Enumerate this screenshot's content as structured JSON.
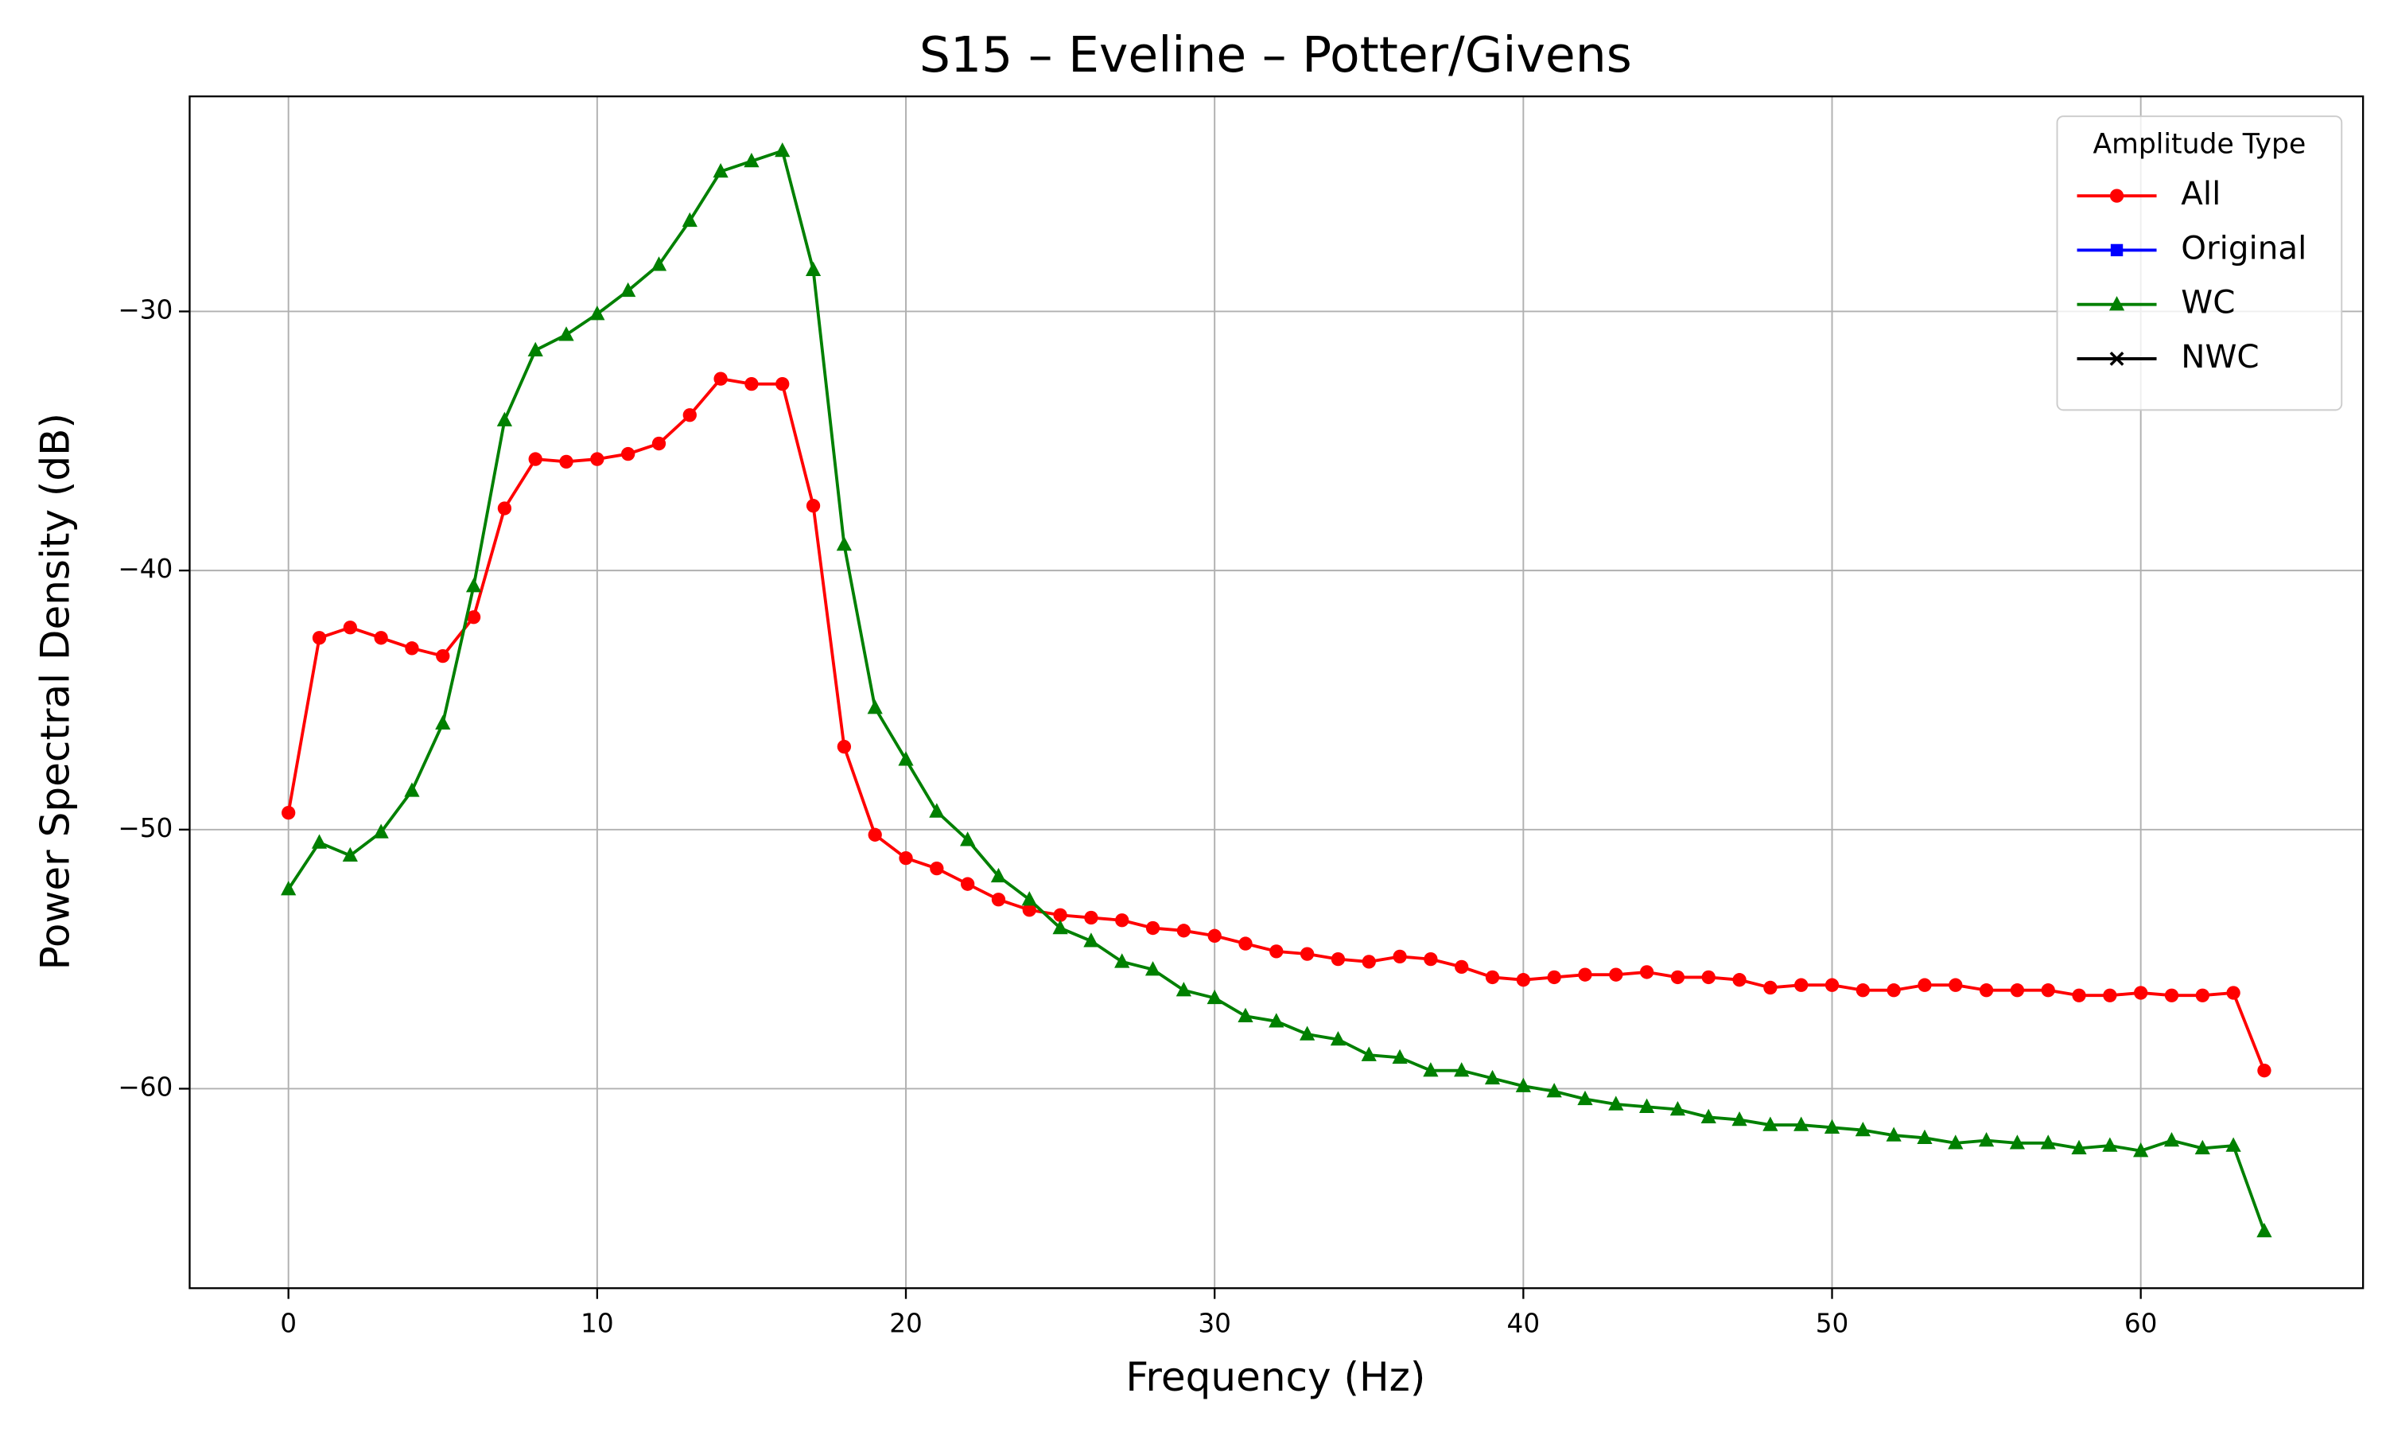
{
  "chart_data": {
    "type": "line",
    "title": "S15 – Eveline – Potter/Givens",
    "x_label": "Frequency (Hz)",
    "y_label": "Power Spectral Density (dB)",
    "x": [
      0,
      1,
      2,
      3,
      4,
      5,
      6,
      7,
      8,
      9,
      10,
      11,
      12,
      13,
      14,
      15,
      16,
      17,
      18,
      19,
      20,
      21,
      22,
      23,
      24,
      25,
      26,
      27,
      28,
      29,
      30,
      31,
      32,
      33,
      34,
      35,
      36,
      37,
      38,
      39,
      40,
      41,
      42,
      43,
      44,
      45,
      46,
      47,
      48,
      49,
      50,
      51,
      52,
      53,
      54,
      55,
      56,
      57,
      58,
      59,
      60,
      61,
      62,
      63,
      64
    ],
    "series": [
      {
        "name": "All",
        "color": "#ff0000",
        "marker": "circle",
        "values": [
          -49.35,
          -42.6,
          -42.2,
          -42.6,
          -43.0,
          -43.3,
          -41.8,
          -37.6,
          -35.7,
          -35.8,
          -35.7,
          -35.5,
          -35.1,
          -34.0,
          -32.6,
          -32.8,
          -32.8,
          -37.5,
          -46.8,
          -50.2,
          -51.1,
          -51.5,
          -52.1,
          -52.7,
          -53.1,
          -53.3,
          -53.4,
          -53.5,
          -53.8,
          -53.9,
          -54.1,
          -54.4,
          -54.7,
          -54.8,
          -55.0,
          -55.1,
          -54.9,
          -55.0,
          -55.3,
          -55.7,
          -55.8,
          -55.7,
          -55.6,
          -55.6,
          -55.5,
          -55.7,
          -55.7,
          -55.8,
          -56.1,
          -56.0,
          -56.0,
          -56.2,
          -56.2,
          -56.0,
          -56.0,
          -56.2,
          -56.2,
          -56.2,
          -56.4,
          -56.4,
          -56.3,
          -56.4,
          -56.4,
          -56.3,
          -59.3
        ]
      },
      {
        "name": "Original",
        "color": "#0000ff",
        "marker": "square"
      },
      {
        "name": "WC",
        "color": "#008000",
        "marker": "triangle",
        "values": [
          -52.3,
          -50.5,
          -51.0,
          -50.1,
          -48.5,
          -45.9,
          -40.6,
          -34.2,
          -31.5,
          -30.9,
          -30.1,
          -29.2,
          -28.2,
          -26.5,
          -24.6,
          -24.2,
          -23.8,
          -28.4,
          -39.0,
          -45.3,
          -47.3,
          -49.3,
          -50.4,
          -51.8,
          -52.7,
          -53.8,
          -54.3,
          -55.1,
          -55.4,
          -56.2,
          -56.5,
          -57.2,
          -57.4,
          -57.9,
          -58.1,
          -58.7,
          -58.8,
          -59.3,
          -59.3,
          -59.6,
          -59.9,
          -60.1,
          -60.4,
          -60.6,
          -60.7,
          -60.8,
          -61.1,
          -61.2,
          -61.4,
          -61.4,
          -61.5,
          -61.6,
          -61.8,
          -61.9,
          -62.1,
          -62.0,
          -62.1,
          -62.1,
          -62.3,
          -62.2,
          -62.4,
          -62.0,
          -62.3,
          -62.2,
          -65.5
        ]
      },
      {
        "name": "NWC",
        "color": "#000000",
        "marker": "x"
      }
    ],
    "xlim": [
      -3.2,
      67.2
    ],
    "ylim": [
      -67.7,
      -21.7
    ],
    "xticks": [
      0,
      10,
      20,
      30,
      40,
      50,
      60
    ],
    "yticks": [
      {
        "value": -60,
        "label": "−60"
      },
      {
        "value": -50,
        "label": "−50"
      },
      {
        "value": -40,
        "label": "−40"
      },
      {
        "value": -30,
        "label": "−30"
      }
    ],
    "grid": true,
    "legend": {
      "title": "Amplitude Type",
      "position": "upper right"
    }
  }
}
